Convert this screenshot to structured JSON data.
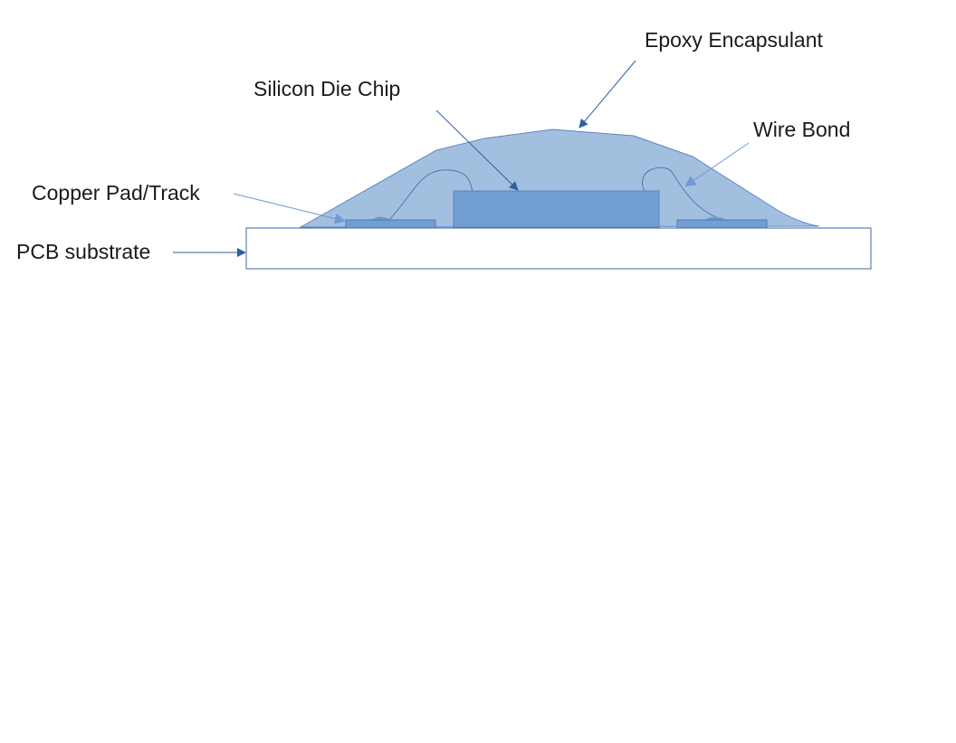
{
  "labels": {
    "epoxy": "Epoxy Encapsulant",
    "die": "Silicon Die Chip",
    "wire": "Wire Bond",
    "copper": "Copper Pad/Track",
    "pcb": "PCB substrate"
  }
}
